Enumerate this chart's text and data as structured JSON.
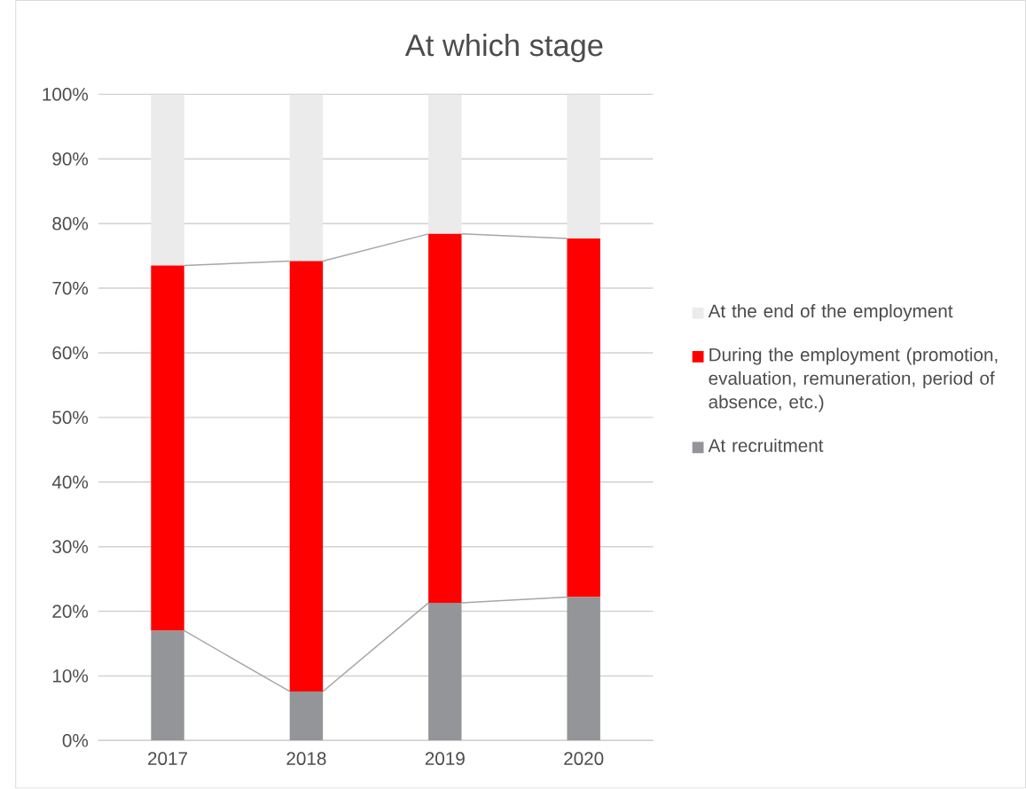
{
  "chart_data": {
    "type": "bar",
    "title": "At which stage",
    "stacked": true,
    "categories": [
      "2017",
      "2018",
      "2019",
      "2020"
    ],
    "series": [
      {
        "name": "At recruitment",
        "color": "#939598",
        "values": [
          17.0,
          7.6,
          21.3,
          22.2
        ]
      },
      {
        "name": "During the employment (promotion, evaluation, remuneration, period of absence, etc.)",
        "color": "#ff0000",
        "values": [
          56.5,
          66.6,
          57.1,
          55.5
        ]
      },
      {
        "name": "At the end of the employment",
        "color": "#ebebeb",
        "values": [
          26.5,
          25.8,
          21.6,
          22.3
        ]
      }
    ],
    "ylim": [
      0,
      100
    ],
    "yticks": [
      {
        "value": 0,
        "label": "0%"
      },
      {
        "value": 10,
        "label": "10%"
      },
      {
        "value": 20,
        "label": "20%"
      },
      {
        "value": 30,
        "label": "30%"
      },
      {
        "value": 40,
        "label": "40%"
      },
      {
        "value": 50,
        "label": "50%"
      },
      {
        "value": 60,
        "label": "60%"
      },
      {
        "value": 70,
        "label": "70%"
      },
      {
        "value": 80,
        "label": "80%"
      },
      {
        "value": 90,
        "label": "90%"
      },
      {
        "value": 100,
        "label": "100%"
      }
    ],
    "grid": "y",
    "legend": "right"
  }
}
